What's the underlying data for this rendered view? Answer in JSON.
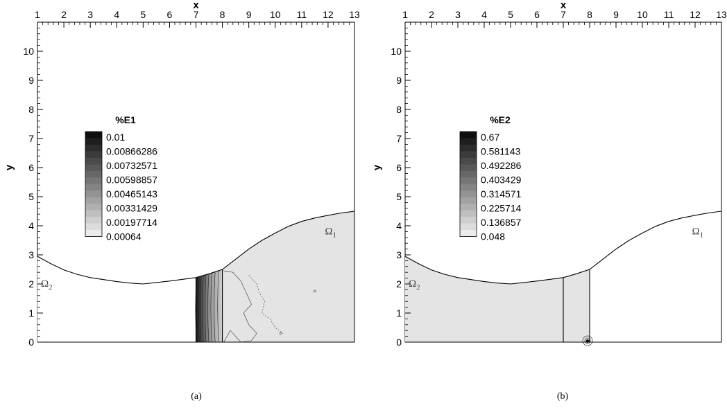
{
  "chart_data": [
    {
      "type": "contour",
      "caption": "(a)",
      "xlabel": "x",
      "ylabel": "y",
      "xlim": [
        1,
        13
      ],
      "ylim": [
        0,
        11
      ],
      "x_ticks": [
        "1",
        "2",
        "3",
        "4",
        "5",
        "6",
        "7",
        "8",
        "9",
        "10",
        "11",
        "12",
        "13"
      ],
      "y_ticks": [
        "0",
        "1",
        "2",
        "3",
        "4",
        "5",
        "6",
        "7",
        "8",
        "9",
        "10"
      ],
      "legend": {
        "title": "%E1",
        "levels": [
          "0.01",
          "0.00866286",
          "0.00732571",
          "0.00598857",
          "0.00465143",
          "0.00331429",
          "0.00197714",
          "0.00064"
        ]
      },
      "regions": [
        {
          "label": "Ω",
          "subscript": "2",
          "x": 1.35,
          "y": 1.9
        },
        {
          "label": "Ω",
          "subscript": "1",
          "x": 12.1,
          "y": 3.7
        }
      ],
      "boundary": {
        "left_x": [
          1,
          1.5,
          2,
          2.5,
          3,
          3.5,
          4,
          4.5,
          5,
          5.5,
          6,
          6.5,
          7,
          7.5,
          8
        ],
        "left_y": [
          2.95,
          2.7,
          2.48,
          2.33,
          2.22,
          2.15,
          2.08,
          2.03,
          2.0,
          2.05,
          2.1,
          2.16,
          2.22,
          2.35,
          2.5
        ],
        "right_x": [
          8,
          8.5,
          9,
          9.5,
          10,
          10.5,
          11,
          11.5,
          12,
          12.5,
          13
        ],
        "right_y": [
          2.5,
          2.85,
          3.2,
          3.5,
          3.75,
          3.98,
          4.15,
          4.27,
          4.36,
          4.44,
          4.5
        ]
      },
      "interfaces_x": [
        7,
        8
      ],
      "colors": {
        "fill_light": "#e4e4e4",
        "fill_dark": "#111111",
        "stroke": "#000000"
      }
    },
    {
      "type": "contour",
      "caption": "(b)",
      "xlabel": "x",
      "ylabel": "y",
      "xlim": [
        1,
        13
      ],
      "ylim": [
        0,
        11
      ],
      "x_ticks": [
        "1",
        "2",
        "3",
        "4",
        "5",
        "6",
        "7",
        "8",
        "9",
        "10",
        "11",
        "12",
        "13"
      ],
      "y_ticks": [
        "0",
        "1",
        "2",
        "3",
        "4",
        "5",
        "6",
        "7",
        "8",
        "9",
        "10"
      ],
      "legend": {
        "title": "%E2",
        "levels": [
          "0.67",
          "0.581143",
          "0.492286",
          "0.403429",
          "0.314571",
          "0.225714",
          "0.136857",
          "0.048"
        ]
      },
      "regions": [
        {
          "label": "Ω",
          "subscript": "2",
          "x": 1.35,
          "y": 1.9
        },
        {
          "label": "Ω",
          "subscript": "1",
          "x": 12.1,
          "y": 3.7
        }
      ],
      "boundary": {
        "left_x": [
          1,
          1.5,
          2,
          2.5,
          3,
          3.5,
          4,
          4.5,
          5,
          5.5,
          6,
          6.5,
          7,
          7.5,
          8
        ],
        "left_y": [
          2.95,
          2.7,
          2.48,
          2.33,
          2.22,
          2.15,
          2.08,
          2.03,
          2.0,
          2.05,
          2.1,
          2.16,
          2.22,
          2.35,
          2.5
        ],
        "right_x": [
          8,
          8.5,
          9,
          9.5,
          10,
          10.5,
          11,
          11.5,
          12,
          12.5,
          13
        ],
        "right_y": [
          2.5,
          2.85,
          3.2,
          3.5,
          3.75,
          3.98,
          4.15,
          4.27,
          4.36,
          4.44,
          4.5
        ]
      },
      "interfaces_x": [
        7,
        8
      ],
      "colors": {
        "fill_light": "#e4e4e4",
        "fill_dark": "#111111",
        "stroke": "#000000"
      }
    }
  ]
}
